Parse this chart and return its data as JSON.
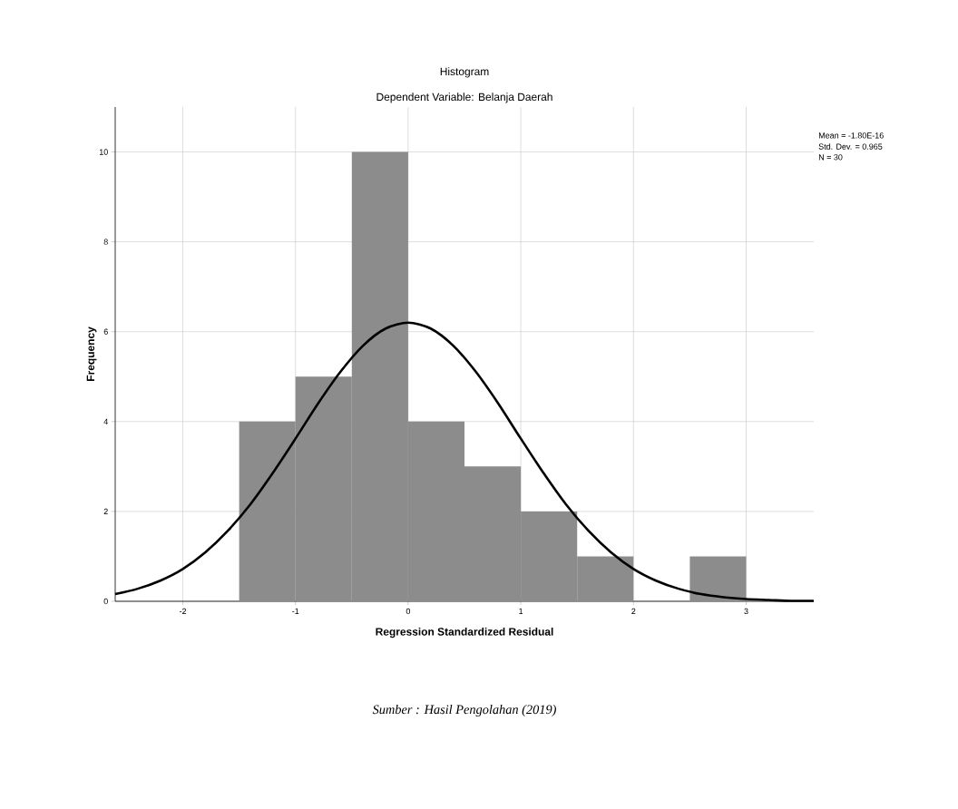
{
  "chart_data": {
    "type": "histogram",
    "title": "Histogram",
    "subtitle": "Dependent Variable: Belanja Daerah",
    "xlabel": "Regression Standardized Residual",
    "ylabel": "Frequency",
    "bins": [
      -1.5,
      -1,
      -0.5,
      0,
      0.5,
      1,
      1.5,
      2,
      2.5,
      3
    ],
    "values": [
      4,
      5,
      10,
      4,
      3,
      2,
      1,
      0,
      1
    ],
    "color": "#8c8c8c",
    "series": [
      {
        "type": "line",
        "color": "#000000",
        "x": [
          -2.6,
          -2.4,
          -2.2,
          -2.0,
          -1.8,
          -1.6,
          -1.4,
          -1.2,
          -1.0,
          -0.8,
          -0.6,
          -0.4,
          -0.2,
          0,
          0.2,
          0.4,
          0.6,
          0.8,
          1.0,
          1.2,
          1.4,
          1.6,
          1.8,
          2.0,
          2.2,
          2.4,
          2.6,
          2.8,
          3.0,
          3.2,
          3.4,
          3.6
        ],
        "values": [
          0.16,
          0.28,
          0.46,
          0.72,
          1.09,
          1.57,
          2.16,
          2.86,
          3.62,
          4.4,
          5.11,
          5.69,
          6.07,
          6.2,
          6.07,
          5.69,
          5.11,
          4.4,
          3.62,
          2.86,
          2.16,
          1.57,
          1.09,
          0.72,
          0.46,
          0.28,
          0.16,
          0.09,
          0.05,
          0.03,
          0.01,
          0.01
        ]
      }
    ],
    "xlim": [
      -2.6,
      3.6
    ],
    "xticks": [
      -2,
      -1,
      0,
      1,
      2,
      3
    ],
    "ylim": [
      0,
      11
    ],
    "yticks": [
      0,
      2,
      4,
      6,
      8,
      10
    ],
    "grid": true,
    "annotations": [
      "Mean = -1.80E-16",
      "Std. Dev. = 0.965",
      "N = 30",
      "Sumber : Hasil Pengolahan (2019)"
    ]
  }
}
